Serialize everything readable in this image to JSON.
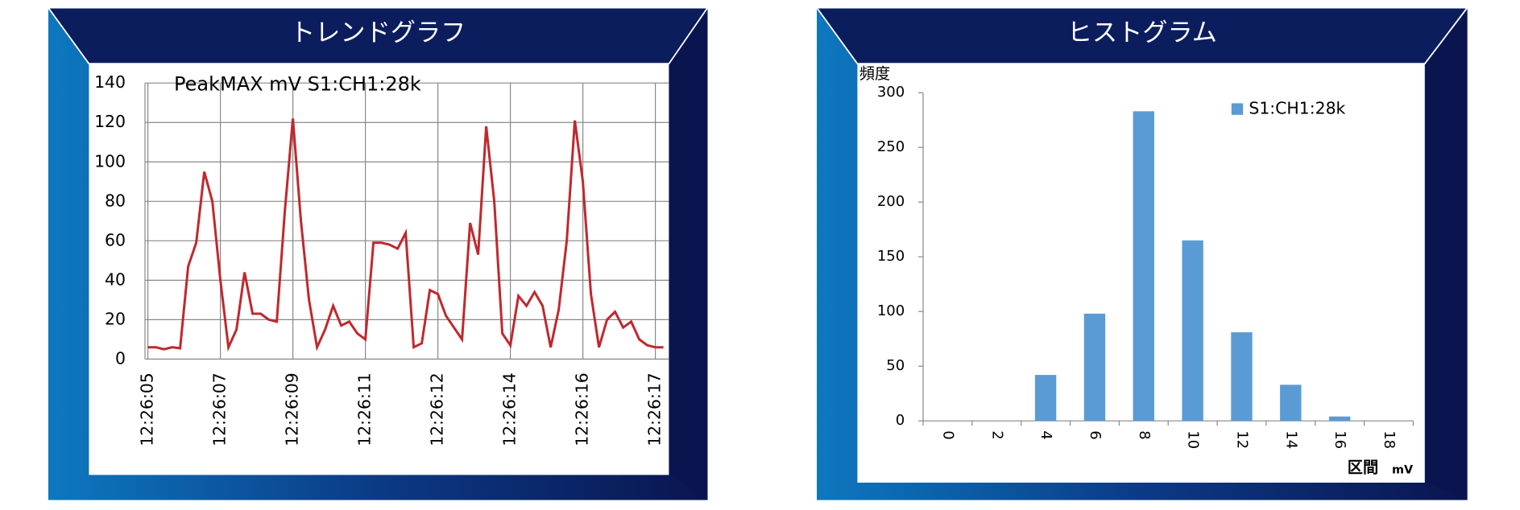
{
  "chart_data": [
    {
      "type": "line",
      "title": "トレンドグラフ",
      "categories": [
        "12:26:05",
        null,
        null,
        null,
        null,
        null,
        null,
        null,
        null,
        "12:26:07",
        null,
        null,
        null,
        null,
        null,
        null,
        null,
        null,
        "12:26:09",
        null,
        null,
        null,
        null,
        null,
        null,
        null,
        null,
        "12:26:11",
        null,
        null,
        null,
        null,
        null,
        null,
        null,
        null,
        "12:26:12",
        null,
        null,
        null,
        null,
        null,
        null,
        null,
        null,
        "12:26:14",
        null,
        null,
        null,
        null,
        null,
        null,
        null,
        null,
        "12:26:16",
        null,
        null,
        null,
        null,
        null,
        null,
        null,
        null,
        "12:26:17",
        null
      ],
      "series": [
        {
          "name": "PeakMAX mV S1:CH1:28k",
          "color": "#c0282d",
          "values": [
            6,
            6,
            5,
            6,
            5.5,
            47,
            59,
            95,
            80,
            40,
            6,
            15,
            44,
            23,
            23,
            20,
            19,
            75,
            122,
            70,
            30,
            6,
            15,
            27,
            17,
            19,
            13,
            10,
            59,
            59,
            58,
            56,
            64,
            6,
            8,
            35,
            33,
            22,
            16,
            10,
            69,
            53,
            118,
            80,
            13,
            7,
            32,
            27,
            34,
            27,
            6,
            25,
            60,
            121,
            90,
            33,
            6,
            20,
            24,
            16,
            19,
            10,
            7,
            6,
            6
          ]
        }
      ],
      "ylim": [
        0,
        140
      ],
      "yticks": [
        0,
        20,
        40,
        60,
        80,
        100,
        120,
        140
      ],
      "grid": true
    },
    {
      "type": "bar",
      "title": "ヒストグラム",
      "categories": [
        "0",
        "2",
        "4",
        "6",
        "8",
        "10",
        "12",
        "14",
        "16",
        "18"
      ],
      "series": [
        {
          "name": "S1:CH1:28k",
          "color": "#5b9bd5",
          "values": [
            0,
            0,
            42,
            98,
            283,
            165,
            81,
            33,
            4,
            0
          ]
        }
      ],
      "ylim": [
        0,
        300
      ],
      "yticks": [
        0,
        50,
        100,
        150,
        200,
        250,
        300
      ],
      "y_label": "頻度",
      "x_label": "区間",
      "x_unit": "mV",
      "legend": "upper right"
    }
  ]
}
